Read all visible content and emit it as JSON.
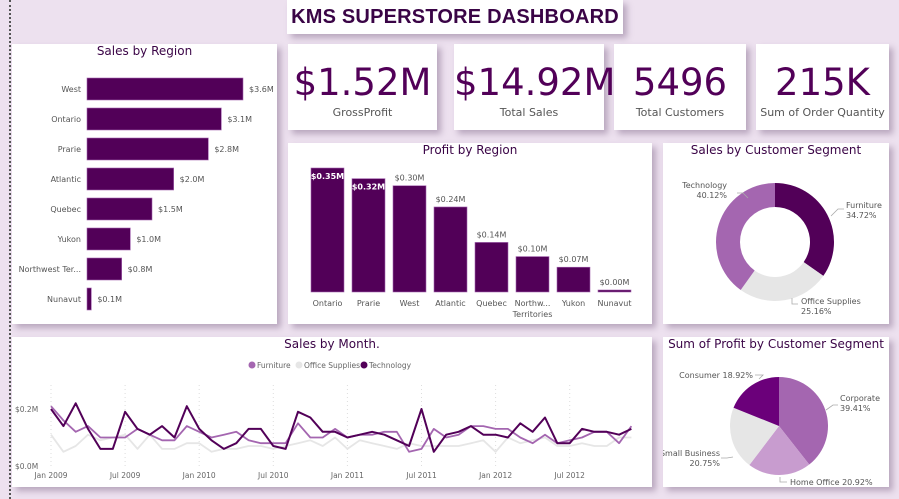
{
  "header": {
    "title": "KMS SUPERSTORE DASHBOARD"
  },
  "colors": {
    "primary": "#520058",
    "furniture": "#a466b0",
    "office_supplies": "#e6e6e6",
    "technology": "#520058",
    "background": "#ede1ef"
  },
  "kpis": [
    {
      "value": "$1.52M",
      "label": "GrossProfit"
    },
    {
      "value": "$14.92M",
      "label": "Total Sales"
    },
    {
      "value": "5496",
      "label": "Total Customers"
    },
    {
      "value": "215K",
      "label": "Sum of Order Quantity"
    }
  ],
  "chart_data": [
    {
      "type": "bar",
      "orientation": "horizontal",
      "title": "Sales by Region",
      "categories": [
        "West",
        "Ontario",
        "Prarie",
        "Atlantic",
        "Quebec",
        "Yukon",
        "Northwest Ter...",
        "Nunavut"
      ],
      "values": [
        3.6,
        3.1,
        2.8,
        2.0,
        1.5,
        1.0,
        0.8,
        0.1
      ],
      "labels": [
        "$3.6M",
        "$3.1M",
        "$2.8M",
        "$2.0M",
        "$1.5M",
        "$1.0M",
        "$0.8M",
        "$0.1M"
      ],
      "unit": "$M"
    },
    {
      "type": "bar",
      "orientation": "vertical",
      "title": "Profit by Region",
      "categories": [
        "Ontario",
        "Prarie",
        "West",
        "Atlantic",
        "Quebec",
        "Northw... Territories",
        "Yukon",
        "Nunavut"
      ],
      "values": [
        0.35,
        0.32,
        0.3,
        0.24,
        0.14,
        0.1,
        0.07,
        0.0
      ],
      "labels": [
        "$0.35M",
        "$0.32M",
        "$0.30M",
        "$0.24M",
        "$0.14M",
        "$0.10M",
        "$0.07M",
        "$0.00M"
      ],
      "unit": "$M"
    },
    {
      "type": "pie",
      "donut": true,
      "title": "Sales by Customer Segment",
      "slices": [
        {
          "label": "Furniture",
          "value": 34.72,
          "text": "34.72%"
        },
        {
          "label": "Office Supplies",
          "value": 25.16,
          "text": "25.16%"
        },
        {
          "label": "Technology",
          "value": 40.12,
          "text": "40.12%"
        }
      ]
    },
    {
      "type": "line",
      "title": "Sales by Month.",
      "legend": [
        "Furniture",
        "Office Supplies",
        "Technology"
      ],
      "legend_position": "top-center",
      "ylabel": "",
      "xlabel": "",
      "yticks": [
        "$0.0M",
        "$0.2M"
      ],
      "ylim": [
        0,
        0.2
      ],
      "xticks": [
        "Jan 2009",
        "Jul 2009",
        "Jan 2010",
        "Jul 2010",
        "Jan 2011",
        "Jul 2011",
        "Jan 2012",
        "Jul 2012"
      ],
      "x_start": "Jan 2009",
      "x_count_months": 48,
      "series": [
        {
          "name": "Furniture",
          "values": [
            0.21,
            0.16,
            0.12,
            0.14,
            0.1,
            0.1,
            0.1,
            0.13,
            0.11,
            0.09,
            0.09,
            0.14,
            0.12,
            0.1,
            0.11,
            0.12,
            0.09,
            0.08,
            0.08,
            0.08,
            0.15,
            0.1,
            0.1,
            0.13,
            0.1,
            0.11,
            0.11,
            0.12,
            0.12,
            0.05,
            0.06,
            0.13,
            0.1,
            0.11,
            0.14,
            0.14,
            0.13,
            0.13,
            0.1,
            0.08,
            0.11,
            0.08,
            0.09,
            0.1,
            0.12,
            0.12,
            0.08,
            0.14
          ]
        },
        {
          "name": "Office Supplies",
          "values": [
            0.11,
            0.05,
            0.07,
            0.11,
            0.09,
            0.1,
            0.11,
            0.06,
            0.11,
            0.06,
            0.06,
            0.08,
            0.08,
            0.05,
            0.06,
            0.06,
            0.07,
            0.07,
            0.06,
            0.07,
            0.08,
            0.09,
            0.07,
            0.1,
            0.06,
            0.09,
            0.08,
            0.07,
            0.06,
            0.08,
            0.07,
            0.07,
            0.07,
            0.07,
            0.08,
            0.09,
            0.05,
            0.1,
            0.08,
            0.09,
            0.1,
            0.07,
            0.07,
            0.08,
            0.07,
            0.07,
            0.1,
            0.1
          ]
        },
        {
          "name": "Technology",
          "values": [
            0.2,
            0.14,
            0.22,
            0.13,
            0.06,
            0.06,
            0.19,
            0.13,
            0.11,
            0.14,
            0.1,
            0.21,
            0.13,
            0.09,
            0.06,
            0.08,
            0.13,
            0.13,
            0.07,
            0.06,
            0.19,
            0.17,
            0.12,
            0.12,
            0.1,
            0.11,
            0.12,
            0.11,
            0.09,
            0.07,
            0.2,
            0.05,
            0.11,
            0.12,
            0.14,
            0.11,
            0.11,
            0.1,
            0.15,
            0.12,
            0.17,
            0.08,
            0.08,
            0.13,
            0.12,
            0.12,
            0.11,
            0.13
          ]
        }
      ]
    },
    {
      "type": "pie",
      "title": "Sum of Profit by Customer Segment",
      "slices": [
        {
          "label": "Corporate",
          "value": 39.41,
          "text": "39.41%"
        },
        {
          "label": "Home Office",
          "value": 20.92,
          "text": "20.92%"
        },
        {
          "label": "Small Business",
          "value": 20.75,
          "text": "20.75%"
        },
        {
          "label": "Consumer",
          "value": 18.92,
          "text": "18.92%"
        }
      ]
    }
  ]
}
